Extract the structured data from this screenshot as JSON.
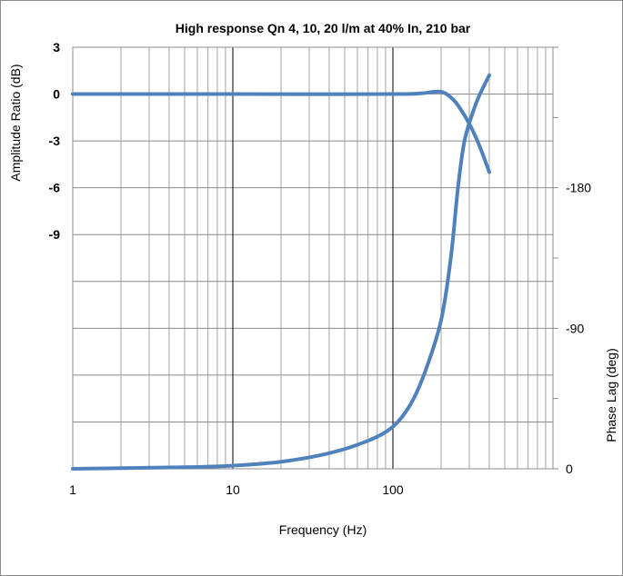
{
  "chart_data": {
    "type": "line",
    "title": "High response Qn 4, 10, 20 l/m at 40% In, 210 bar",
    "xlabel": "Frequency (Hz)",
    "ylabel_left": "Amplitude Ratio (dB)",
    "ylabel_right": "Phase Lag (deg)",
    "x_scale": "log",
    "xlim": [
      1,
      1000
    ],
    "x_ticks": [
      "1",
      "10",
      "100"
    ],
    "ylim_left": [
      -24,
      3
    ],
    "y_ticks_left": [
      "3",
      "0",
      "-3",
      "-6",
      "-9"
    ],
    "ylim_right": [
      0,
      270
    ],
    "y_ticks_right": [
      "-180",
      "-90",
      "0"
    ],
    "grid": true,
    "series": [
      {
        "axis": "left",
        "color": "#4f81bd",
        "points": [
          [
            1,
            0
          ],
          [
            10,
            0
          ],
          [
            100,
            0
          ],
          [
            150,
            0.05
          ],
          [
            180,
            0.15
          ],
          [
            200,
            0.15
          ],
          [
            220,
            -0.05
          ],
          [
            250,
            -0.6
          ],
          [
            300,
            -1.9
          ],
          [
            350,
            -3.4
          ],
          [
            400,
            -5
          ]
        ]
      },
      {
        "axis": "right",
        "color": "#4f81bd",
        "points": [
          [
            1,
            0
          ],
          [
            5,
            1
          ],
          [
            10,
            2
          ],
          [
            20,
            4.5
          ],
          [
            40,
            10
          ],
          [
            70,
            18
          ],
          [
            100,
            27
          ],
          [
            130,
            42
          ],
          [
            160,
            63
          ],
          [
            200,
            95
          ],
          [
            230,
            135
          ],
          [
            255,
            180
          ],
          [
            280,
            210
          ],
          [
            320,
            230
          ],
          [
            350,
            240
          ],
          [
            400,
            252
          ]
        ]
      }
    ]
  }
}
